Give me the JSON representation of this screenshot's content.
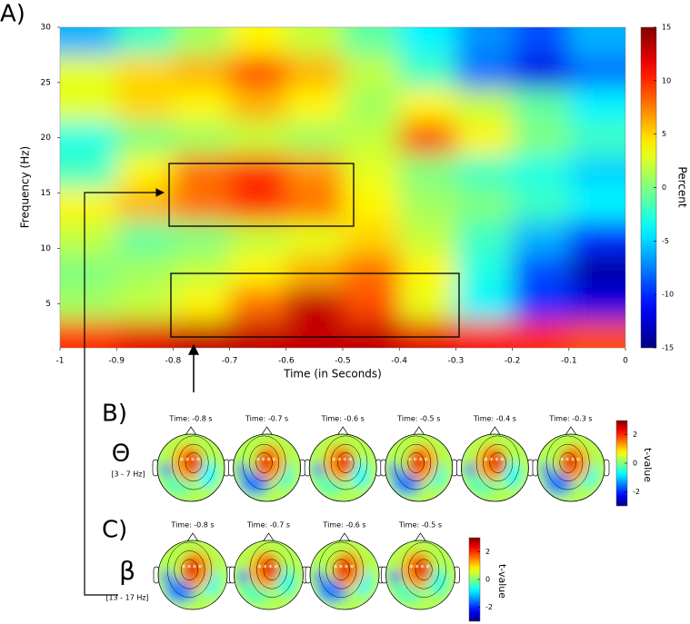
{
  "panel_labels": {
    "a": "A)",
    "b": "B)",
    "c": "C)"
  },
  "chart_data": {
    "type": "heatmap",
    "xlabel": "Time (in Seconds)",
    "ylabel": "Frequency (Hz)",
    "colorbar_label": "Percent",
    "x": [
      -0.95,
      -0.85,
      -0.75,
      -0.65,
      -0.55,
      -0.45,
      -0.35,
      -0.25,
      -0.15,
      -0.05
    ],
    "y": [
      2,
      5,
      8,
      11,
      14,
      17,
      20,
      23,
      26,
      29
    ],
    "values": [
      [
        10,
        12,
        13,
        13,
        13,
        13,
        12,
        11,
        10,
        9
      ],
      [
        1,
        2,
        4,
        8,
        13,
        9,
        3,
        -4,
        -10,
        -12
      ],
      [
        0,
        1,
        2,
        4,
        6,
        8,
        4,
        -3,
        -9,
        -14
      ],
      [
        2,
        -1,
        0,
        2,
        3,
        5,
        2,
        -2,
        -6,
        -10
      ],
      [
        4,
        6,
        8,
        10,
        8,
        4,
        1,
        0,
        -2,
        -4
      ],
      [
        -2,
        4,
        8,
        10,
        7,
        3,
        0,
        -2,
        -3,
        -5
      ],
      [
        -3,
        0,
        1,
        2,
        1,
        2,
        9,
        4,
        0,
        -2
      ],
      [
        3,
        5,
        4,
        6,
        4,
        1,
        4,
        2,
        -1,
        -4
      ],
      [
        3,
        5,
        6,
        9,
        6,
        2,
        -2,
        -8,
        -12,
        -8
      ],
      [
        -6,
        -2,
        1,
        4,
        2,
        -1,
        -4,
        -7,
        -9,
        -6
      ]
    ],
    "xlim": [
      -1,
      0
    ],
    "ylim": [
      1,
      30
    ],
    "xticks": [
      -1,
      -0.9,
      -0.8,
      -0.7,
      -0.6,
      -0.5,
      -0.4,
      -0.3,
      -0.2,
      -0.1,
      0
    ],
    "yticks": [
      5,
      10,
      15,
      20,
      25,
      30
    ],
    "clim": [
      -15,
      15
    ],
    "cticks": [
      -15,
      -10,
      -5,
      0,
      5,
      10,
      15
    ],
    "colormap": "jet"
  },
  "theta": {
    "symbol": "Θ",
    "band": "[3 - 7 Hz]",
    "times": [
      "Time: -0.8 s",
      "Time: -0.7 s",
      "Time: -0.6 s",
      "Time: -0.5 s",
      "Time: -0.4 s",
      "Time: -0.3 s"
    ],
    "colorbar_label": "t-value",
    "clim": [
      -3,
      3
    ],
    "cticks": [
      -2,
      0,
      2
    ]
  },
  "beta": {
    "symbol": "β",
    "band": "[13 - 17 Hz]",
    "times": [
      "Time: -0.8 s",
      "Time: -0.7 s",
      "Time: -0.6 s",
      "Time: -0.5 s"
    ],
    "colorbar_label": "t-value",
    "clim": [
      -3,
      3
    ],
    "cticks": [
      -2,
      0,
      2
    ]
  }
}
